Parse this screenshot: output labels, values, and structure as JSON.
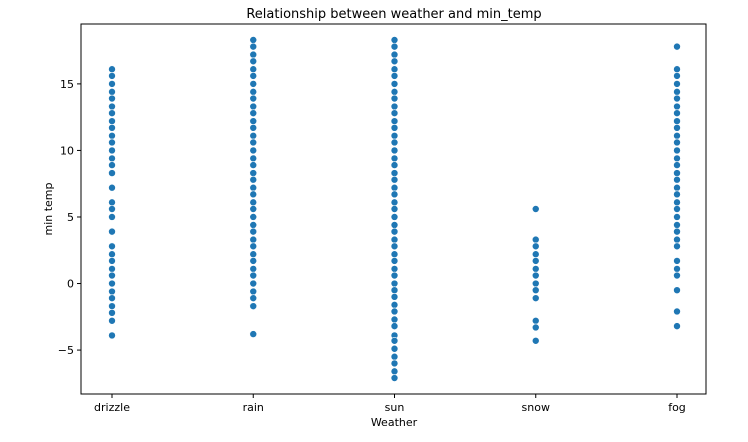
{
  "chart_data": {
    "type": "scatter",
    "title": "Relationship between weather and min_temp",
    "xlabel": "Weather",
    "ylabel": "min temp",
    "categories": [
      "drizzle",
      "rain",
      "sun",
      "snow",
      "fog"
    ],
    "ylim": [
      -8.3,
      19.5
    ],
    "yticks": [
      -5,
      0,
      5,
      10,
      15
    ],
    "grid": false,
    "legend": "none",
    "marker_color": "#1f77b4",
    "points": [
      {
        "x": "drizzle",
        "y": [
          16.1,
          15.6,
          15.0,
          14.4,
          13.9,
          13.3,
          12.8,
          12.2,
          11.7,
          11.1,
          10.6,
          10.0,
          9.4,
          8.9,
          8.3,
          7.2,
          6.1,
          5.6,
          5.0,
          3.9,
          2.8,
          2.2,
          1.7,
          1.1,
          0.6,
          0.0,
          -0.6,
          -1.1,
          -1.7,
          -2.2,
          -2.8,
          -3.9
        ]
      },
      {
        "x": "rain",
        "y": [
          18.3,
          17.8,
          17.2,
          16.7,
          16.1,
          15.6,
          15.0,
          14.4,
          13.9,
          13.3,
          12.8,
          12.2,
          11.7,
          11.1,
          10.6,
          10.0,
          9.4,
          8.9,
          8.3,
          7.8,
          7.2,
          6.7,
          6.1,
          5.6,
          5.0,
          4.4,
          3.9,
          3.3,
          2.8,
          2.2,
          1.7,
          1.1,
          0.6,
          0.0,
          -0.6,
          -1.1,
          -1.7,
          -3.8
        ]
      },
      {
        "x": "sun",
        "y": [
          18.3,
          17.8,
          17.2,
          16.7,
          16.1,
          15.6,
          15.0,
          14.4,
          13.9,
          13.3,
          12.8,
          12.2,
          11.7,
          11.1,
          10.6,
          10.0,
          9.4,
          8.9,
          8.3,
          7.8,
          7.2,
          6.7,
          6.1,
          5.6,
          5.0,
          4.4,
          3.9,
          3.3,
          2.8,
          2.2,
          1.7,
          1.1,
          0.6,
          0.0,
          -0.5,
          -1.0,
          -1.6,
          -2.1,
          -2.7,
          -3.2,
          -3.9,
          -4.3,
          -4.9,
          -5.5,
          -6.0,
          -6.6,
          -7.1
        ]
      },
      {
        "x": "snow",
        "y": [
          5.6,
          3.3,
          2.8,
          2.2,
          1.7,
          1.1,
          0.6,
          0.0,
          -0.5,
          -1.1,
          -2.8,
          -3.3,
          -4.3
        ]
      },
      {
        "x": "fog",
        "y": [
          17.8,
          16.1,
          15.6,
          15.0,
          14.4,
          13.9,
          13.3,
          12.8,
          12.2,
          11.7,
          11.1,
          10.6,
          10.0,
          9.4,
          8.9,
          8.3,
          7.8,
          7.2,
          6.7,
          6.1,
          5.6,
          5.0,
          4.4,
          3.9,
          3.3,
          2.8,
          1.7,
          1.1,
          0.6,
          -0.5,
          -2.1,
          -3.2
        ]
      }
    ]
  }
}
